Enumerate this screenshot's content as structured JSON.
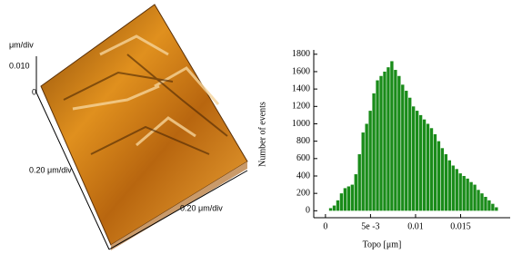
{
  "surface": {
    "z_unit": "μm/div",
    "z_ticks": [
      "0.010",
      "0"
    ],
    "y_scale": "0.20 μm/div",
    "x_scale": "0.20 μm/div"
  },
  "chart_data": {
    "type": "histogram",
    "xlabel": "Topo [μm]",
    "ylabel": "Number of events",
    "color": "#1a8c1a",
    "bins": [
      0.0004,
      0.0008,
      0.0012,
      0.0016,
      0.002,
      0.0024,
      0.0028,
      0.0032,
      0.0036,
      0.004,
      0.0044,
      0.0048,
      0.0052,
      0.0056,
      0.006,
      0.0064,
      0.0068,
      0.0072,
      0.0076,
      0.008,
      0.0084,
      0.0088,
      0.0092,
      0.0096,
      0.01,
      0.0104,
      0.0108,
      0.0112,
      0.0116,
      0.012,
      0.0124,
      0.0128,
      0.0132,
      0.0136,
      0.014,
      0.0144,
      0.0148,
      0.0152,
      0.0156,
      0.016,
      0.0164,
      0.0168,
      0.0172,
      0.0176,
      0.018,
      0.0184,
      0.0188,
      0.0192
    ],
    "values": [
      30,
      60,
      120,
      200,
      260,
      280,
      300,
      420,
      650,
      900,
      1000,
      1150,
      1350,
      1500,
      1550,
      1600,
      1650,
      1720,
      1620,
      1550,
      1450,
      1380,
      1300,
      1200,
      1150,
      1100,
      1050,
      1000,
      950,
      880,
      800,
      720,
      650,
      580,
      520,
      480,
      430,
      400,
      370,
      330,
      300,
      240,
      200,
      160,
      120,
      80,
      40
    ],
    "xlim": [
      -0.0013,
      0.0205
    ],
    "ylim": [
      -80,
      1850
    ],
    "xticks": [
      0,
      {
        "value": 0.005,
        "label": "5e -3"
      },
      0.01,
      0.015
    ],
    "yticks": [
      0,
      200,
      400,
      600,
      800,
      1000,
      1200,
      1400,
      1600,
      1800
    ]
  }
}
